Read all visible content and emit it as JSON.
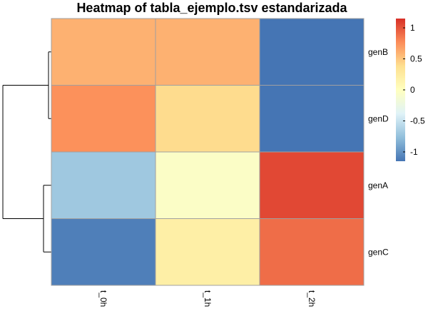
{
  "chart_data": {
    "type": "heatmap",
    "title": "Heatmap of tabla_ejemplo.tsv estandarizada",
    "columns": [
      "t_0h",
      "t_1h",
      "t_2h"
    ],
    "rows": [
      "genB",
      "genD",
      "genA",
      "genC"
    ],
    "values": [
      [
        0.6,
        0.6,
        -1.15
      ],
      [
        0.75,
        0.4,
        -1.15
      ],
      [
        -0.7,
        -0.05,
        1.05
      ],
      [
        -1.1,
        0.2,
        0.9
      ]
    ],
    "colorbar": {
      "range": [
        -1.15,
        1.15
      ],
      "ticks": [
        1,
        0.5,
        0,
        -0.5,
        -1
      ],
      "tick_labels": [
        "1",
        "0.5",
        "0",
        "-0.5",
        "-1"
      ],
      "colors": [
        "#4575B4",
        "#91BFDB",
        "#E0F3F8",
        "#FFFFBF",
        "#FEE090",
        "#FC8D59",
        "#D73027"
      ]
    },
    "row_dendrogram": {
      "clusters": [
        [
          "genB",
          "genD"
        ],
        [
          "genA",
          "genC"
        ]
      ]
    },
    "legend_placement": "right",
    "cell_border_color": "#A0A0A0"
  }
}
